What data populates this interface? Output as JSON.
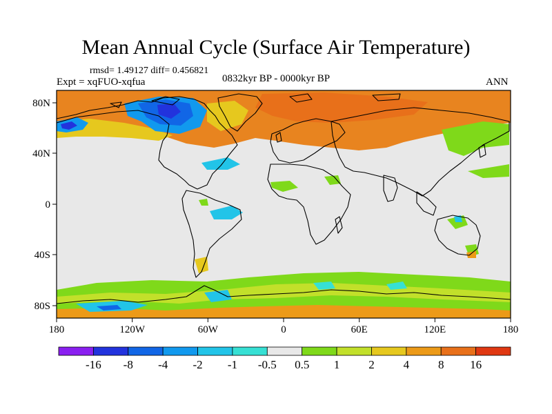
{
  "figure": {
    "title": "Mean Annual Cycle (Surface Air Temperature)",
    "stats": "rmsd= 1.49127 diff= 0.456821",
    "experiment": "Expt = xqFUO-xqfua",
    "period": "0832kyr BP - 0000kyr BP",
    "season": "ANN"
  },
  "axes": {
    "x_ticks": [
      "180",
      "120W",
      "60W",
      "0",
      "60E",
      "120E",
      "180"
    ],
    "y_ticks": [
      "80N",
      "40N",
      "0",
      "40S",
      "80S"
    ]
  },
  "colorbar": {
    "colors": [
      "#8a1ff0",
      "#2233dd",
      "#1166e6",
      "#1199ee",
      "#22c4e8",
      "#36e0d4",
      "#e8e8e8",
      "#7fd91a",
      "#c2e02a",
      "#e6c81e",
      "#ec9a18",
      "#e8701a",
      "#e03812"
    ],
    "labels": [
      "-16",
      "-8",
      "-4",
      "-2",
      "-1",
      "-0.5",
      "0.5",
      "1",
      "2",
      "4",
      "8",
      "16"
    ]
  }
}
